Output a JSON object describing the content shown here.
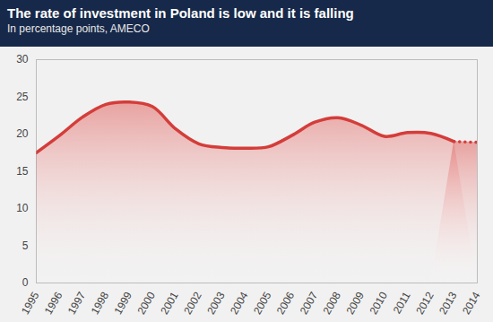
{
  "chart_data": {
    "type": "line",
    "title": "The rate of investment in Poland is low and it is falling",
    "subtitle": "In percentage points, AMECO",
    "x": [
      1995,
      1996,
      1997,
      1998,
      1999,
      2000,
      2001,
      2002,
      2003,
      2004,
      2005,
      2006,
      2007,
      2008,
      2009,
      2010,
      2011,
      2012,
      2013,
      2014
    ],
    "series": [
      {
        "color": "#d43d3a",
        "line_style": "solid",
        "values": [
          17.5,
          19.8,
          22.3,
          24.0,
          24.3,
          23.7,
          20.7,
          18.7,
          18.2,
          18.1,
          18.3,
          19.8,
          21.6,
          22.2,
          21.2,
          19.7,
          20.2,
          20.1,
          19.0,
          null
        ]
      },
      {
        "color": "#d43d3a",
        "line_style": "dotted",
        "values": [
          null,
          null,
          null,
          null,
          null,
          null,
          null,
          null,
          null,
          null,
          null,
          null,
          null,
          null,
          null,
          null,
          null,
          null,
          19.0,
          18.9
        ]
      }
    ],
    "xlim": [
      1995,
      2014
    ],
    "xticks": [
      1995,
      1996,
      1997,
      1998,
      1999,
      2000,
      2001,
      2002,
      2003,
      2004,
      2005,
      2006,
      2007,
      2008,
      2009,
      2010,
      2011,
      2012,
      2013,
      2014
    ],
    "ylim": [
      0,
      30
    ],
    "yticks": [
      0,
      5,
      10,
      15,
      20,
      25,
      30
    ],
    "grid": false
  }
}
